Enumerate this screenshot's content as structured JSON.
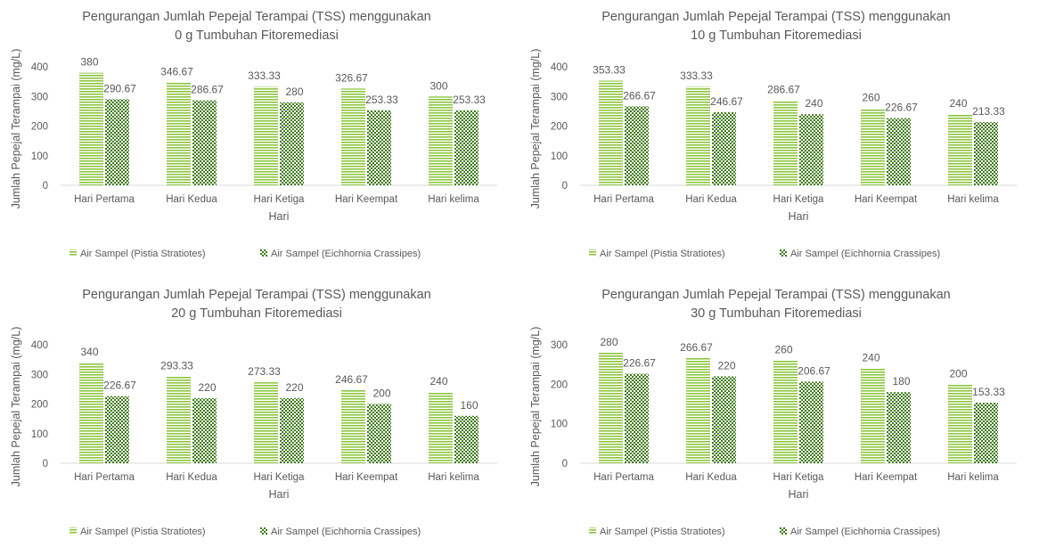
{
  "legend_labels": [
    "Air Sampel (Pistia Stratiotes)",
    "Air Sampel (Eichhornia Crassipes)"
  ],
  "colors": {
    "series1": "#8cc63f",
    "series2": "#3d7a16",
    "axis_text": "#595959",
    "axis_line": "#d9d9d9"
  },
  "chart_data": [
    {
      "type": "bar",
      "title": "Pengurangan Jumlah Pepejal Terampai (TSS) menggunakan",
      "subtitle": "0 g Tumbuhan Fitoremediasi",
      "xlabel": "Hari",
      "ylabel": "Jumlah Pepejal Terampai (mg/L)",
      "ylim": [
        0,
        400
      ],
      "yticks": [
        0,
        100,
        200,
        300,
        400
      ],
      "categories": [
        "Hari Pertama",
        "Hari Kedua",
        "Hari Ketiga",
        "Hari Keempat",
        "Hari kelima"
      ],
      "series": [
        {
          "name": "Air Sampel (Pistia Stratiotes)",
          "values": [
            380,
            346.67,
            333.33,
            326.67,
            300
          ]
        },
        {
          "name": "Air Sampel (Eichhornia Crassipes)",
          "values": [
            290.67,
            286.67,
            280,
            253.33,
            253.33
          ]
        }
      ],
      "legend": "bottom"
    },
    {
      "type": "bar",
      "title": "Pengurangan Jumlah Pepejal Terampai (TSS) menggunakan",
      "subtitle": "10 g Tumbuhan Fitoremediasi",
      "xlabel": "Hari",
      "ylabel": "Jumlah Pepejal Terampai (mg/L)",
      "ylim": [
        0,
        400
      ],
      "yticks": [
        0,
        100,
        200,
        300,
        400
      ],
      "categories": [
        "Hari Pertama",
        "Hari Kedua",
        "Hari Ketiga",
        "Hari Keempat",
        "Hari kelima"
      ],
      "series": [
        {
          "name": "Air Sampel (Pistia Stratiotes)",
          "values": [
            353.33,
            333.33,
            286.67,
            260,
            240
          ]
        },
        {
          "name": "Air Sampel (Eichhornia Crassipes)",
          "values": [
            266.67,
            246.67,
            240,
            226.67,
            213.33
          ]
        }
      ],
      "legend": "bottom"
    },
    {
      "type": "bar",
      "title": "Pengurangan Jumlah Pepejal Terampai (TSS) menggunakan",
      "subtitle": "20 g Tumbuhan Fitoremediasi",
      "xlabel": "Hari",
      "ylabel": "Jumlah Pepejal Terampai (mg/L)",
      "ylim": [
        0,
        400
      ],
      "yticks": [
        0,
        100,
        200,
        300,
        400
      ],
      "categories": [
        "Hari Pertama",
        "Hari Kedua",
        "Hari Ketiga",
        "Hari Keempat",
        "Hari kelima"
      ],
      "series": [
        {
          "name": "Air Sampel (Pistia Stratiotes)",
          "values": [
            340,
            293.33,
            273.33,
            246.67,
            240
          ]
        },
        {
          "name": "Air Sampel (Eichhornia Crassipes)",
          "values": [
            226.67,
            220,
            220,
            200,
            160
          ]
        }
      ],
      "legend": "bottom"
    },
    {
      "type": "bar",
      "title": "Pengurangan Jumlah Pepejal Terampai (TSS) menggunakan",
      "subtitle": "30 g Tumbuhan Fitoremediasi",
      "xlabel": "Hari",
      "ylabel": "Jumlah Pepejal Terampai (mg/L)",
      "ylim": [
        0,
        300
      ],
      "yticks": [
        0,
        100,
        200,
        300
      ],
      "categories": [
        "Hari Pertama",
        "Hari Kedua",
        "Hari Ketiga",
        "Hari Keempat",
        "Hari kelima"
      ],
      "series": [
        {
          "name": "Air Sampel (Pistia Stratiotes)",
          "values": [
            280,
            266.67,
            260,
            240,
            200
          ]
        },
        {
          "name": "Air Sampel (Eichhornia Crassipes)",
          "values": [
            226.67,
            220,
            206.67,
            180,
            153.33
          ]
        }
      ],
      "legend": "bottom"
    }
  ]
}
